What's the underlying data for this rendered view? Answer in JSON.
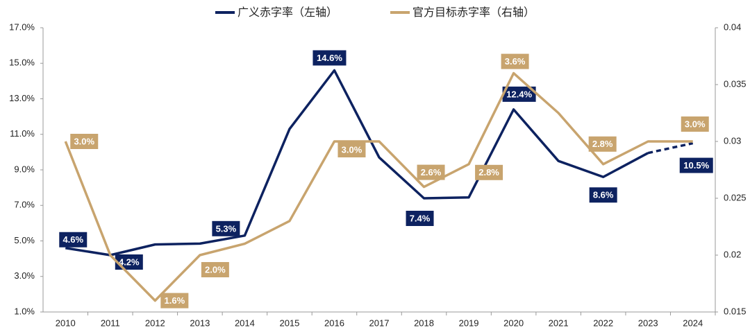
{
  "chart_data": {
    "type": "line",
    "categories": [
      "2010",
      "2011",
      "2012",
      "2013",
      "2014",
      "2015",
      "2016",
      "2017",
      "2018",
      "2019",
      "2020",
      "2021",
      "2022",
      "2023",
      "2024"
    ],
    "series": [
      {
        "name": "广义赤字率（左轴）",
        "color": "#0d2260",
        "axis": "y",
        "values": [
          4.6,
          4.2,
          4.8,
          4.85,
          5.3,
          11.3,
          14.6,
          9.7,
          7.4,
          7.45,
          12.4,
          9.5,
          8.6,
          9.95,
          10.5
        ],
        "value_labels": [
          "4.6%",
          "4.2%",
          null,
          null,
          "5.3%",
          null,
          "14.6%",
          null,
          "7.4%",
          null,
          "12.4%",
          null,
          "8.6%",
          null,
          "10.5%"
        ]
      },
      {
        "name": "官方目标赤字率（右轴）",
        "color": "#c8a46e",
        "axis": "y2",
        "values": [
          0.03,
          0.02,
          0.016,
          0.02,
          0.021,
          0.023,
          0.03,
          0.03,
          0.026,
          0.028,
          0.036,
          0.0325,
          0.028,
          0.03,
          0.03
        ],
        "value_labels": [
          "3.0%",
          null,
          "1.6%",
          "2.0%",
          null,
          null,
          "3.0%",
          null,
          "2.6%",
          "2.8%",
          "3.6%",
          null,
          "2.8%",
          null,
          "3.0%"
        ]
      }
    ],
    "ylim": [
      1.0,
      17.0
    ],
    "yticks": [
      {
        "value": 1,
        "label": "1.0%"
      },
      {
        "value": 3,
        "label": "3.0%"
      },
      {
        "value": 5,
        "label": "5.0%"
      },
      {
        "value": 7,
        "label": "7.0%"
      },
      {
        "value": 9,
        "label": "9.0%"
      },
      {
        "value": 11,
        "label": "11.0%"
      },
      {
        "value": 13,
        "label": "13.0%"
      },
      {
        "value": 15,
        "label": "15.0%"
      },
      {
        "value": 17,
        "label": "17.0%"
      }
    ],
    "y2lim": [
      0.015,
      0.04
    ],
    "y2ticks": [
      0.015,
      0.02,
      0.025,
      0.03,
      0.035,
      0.04
    ],
    "legend": "top",
    "grid": false
  }
}
